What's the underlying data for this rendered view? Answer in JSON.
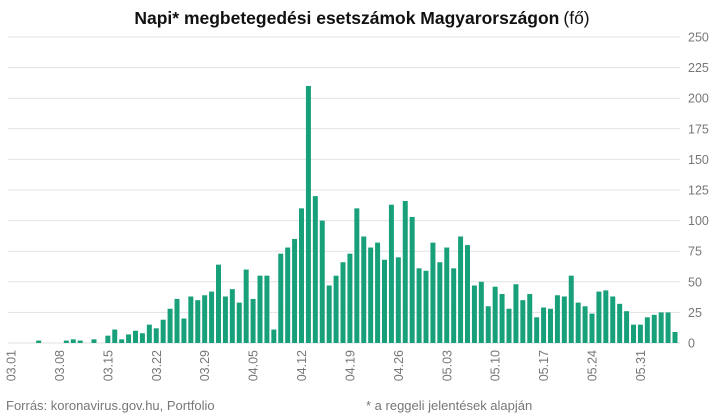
{
  "chart_data": {
    "type": "bar",
    "title": "Napi* megbetegedési esetszámok Magyarországon",
    "title_unit": "(fő)",
    "ylim": [
      0,
      250
    ],
    "yticks": [
      0,
      25,
      50,
      75,
      100,
      125,
      150,
      175,
      200,
      225,
      250
    ],
    "y_axis_side": "right",
    "grid": true,
    "legend": "none",
    "bar_color": "#17a07a",
    "xtick_labels": [
      "03.01",
      "03.08",
      "03.15",
      "03.22",
      "03.29",
      "04.05",
      "04.12",
      "04.19",
      "04.26",
      "05.03",
      "05.10",
      "05.17",
      "05.24",
      "05.31"
    ],
    "xtick_every": 7,
    "start_date": "03.01",
    "values": [
      0,
      0,
      0,
      0,
      2,
      0,
      0,
      0,
      2,
      3,
      2,
      0,
      3,
      0,
      6,
      11,
      3,
      7,
      10,
      8,
      15,
      12,
      19,
      28,
      36,
      20,
      38,
      35,
      39,
      42,
      64,
      38,
      44,
      33,
      60,
      36,
      55,
      55,
      11,
      73,
      78,
      85,
      110,
      210,
      120,
      100,
      47,
      55,
      66,
      73,
      110,
      87,
      78,
      82,
      68,
      113,
      70,
      116,
      103,
      61,
      59,
      82,
      66,
      78,
      61,
      87,
      80,
      47,
      50,
      30,
      46,
      40,
      28,
      48,
      35,
      40,
      21,
      29,
      28,
      39,
      38,
      55,
      33,
      30,
      24,
      42,
      43,
      38,
      32,
      26,
      15,
      15,
      21,
      23,
      25,
      25,
      9
    ],
    "footer_source": "Forrás: koronavirus.gov.hu, Portfolio",
    "footer_note": "* a reggeli jelentések alapján"
  }
}
